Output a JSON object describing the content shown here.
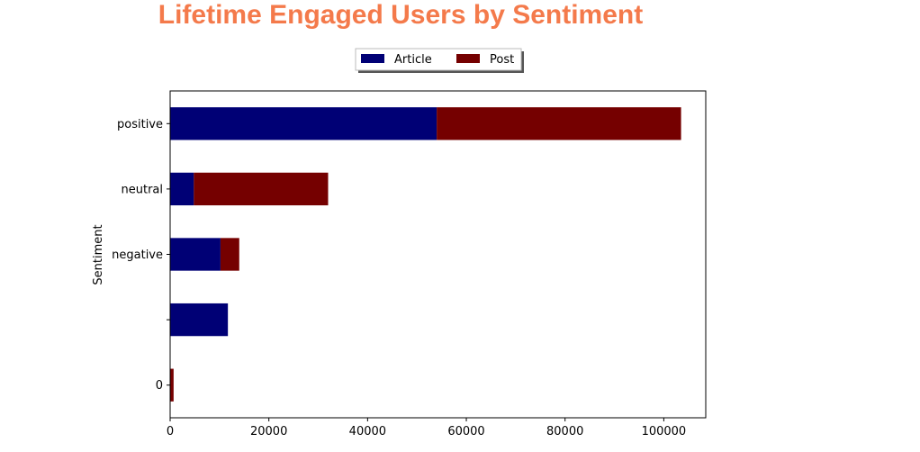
{
  "chart_data": {
    "type": "bar",
    "orientation": "horizontal",
    "stacked": true,
    "title": "Lifetime Engaged Users by Sentiment",
    "title_color": "#f47a4b",
    "xlabel": "",
    "ylabel": "Sentiment",
    "categories": [
      "0",
      "",
      "negative",
      "neutral",
      "positive"
    ],
    "series": [
      {
        "name": "Article",
        "color": "#000075",
        "values": [
          0,
          11700,
          10200,
          4800,
          54000
        ]
      },
      {
        "name": "Post",
        "color": "#750000",
        "values": [
          700,
          0,
          3800,
          27200,
          49500
        ]
      }
    ],
    "xlim": [
      0,
      108500
    ],
    "xticks": [
      0,
      20000,
      40000,
      60000,
      80000,
      100000
    ],
    "xtick_labels": [
      "0",
      "20000",
      "40000",
      "60000",
      "80000",
      "100000"
    ],
    "legend_position": "top-center",
    "grid": false
  }
}
